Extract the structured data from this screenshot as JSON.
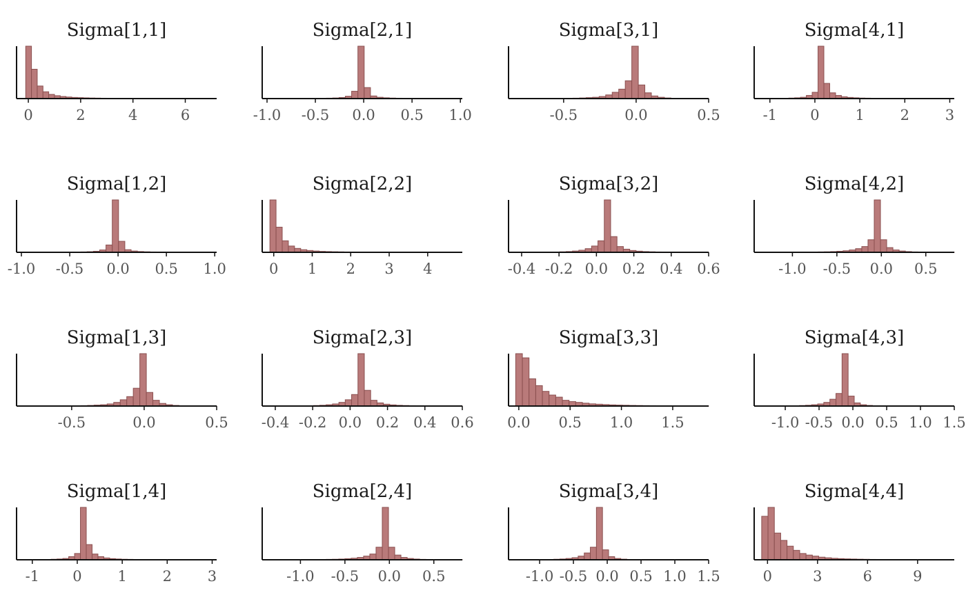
{
  "chart_data": [
    {
      "type": "bar",
      "title": "Sigma[1,1]",
      "xlim": [
        -0.45,
        7.2
      ],
      "ticks": [
        0,
        2,
        4,
        6
      ],
      "tick_labels": [
        "0",
        "2",
        "4",
        "6"
      ],
      "bin_start": -0.1,
      "bin_width": 0.22,
      "counts": [
        1000,
        560,
        240,
        130,
        80,
        55,
        40,
        30,
        22,
        18,
        14,
        11,
        9,
        7,
        6,
        5,
        4,
        4,
        3,
        3,
        3,
        2,
        2,
        2,
        2,
        2,
        1,
        1,
        1,
        1,
        1
      ]
    },
    {
      "type": "bar",
      "title": "Sigma[2,1]",
      "xlim": [
        -1.05,
        1.02
      ],
      "ticks": [
        -1.0,
        -0.5,
        0.0,
        0.5,
        1.0
      ],
      "tick_labels": [
        "-1.0",
        "-0.5",
        "0.0",
        "0.5",
        "1.0"
      ],
      "bin_start": -0.97,
      "bin_width": 0.065,
      "counts": [
        1,
        1,
        1,
        1,
        1,
        2,
        2,
        3,
        5,
        8,
        12,
        20,
        45,
        140,
        1000,
        210,
        50,
        25,
        15,
        10,
        7,
        5,
        4,
        3,
        2,
        2,
        1,
        1,
        1,
        1
      ]
    },
    {
      "type": "bar",
      "title": "Sigma[3,1]",
      "xlim": [
        -0.88,
        0.5
      ],
      "ticks": [
        -0.5,
        0.0,
        0.5
      ],
      "tick_labels": [
        "-0.5",
        "0.0",
        "0.5"
      ],
      "bin_start": -0.84,
      "bin_width": 0.045,
      "counts": [
        1,
        1,
        1,
        1,
        1,
        2,
        3,
        4,
        6,
        8,
        12,
        18,
        25,
        40,
        70,
        120,
        180,
        340,
        1000,
        260,
        110,
        50,
        25,
        12,
        6,
        3,
        2,
        1,
        1,
        1,
        1
      ]
    },
    {
      "type": "bar",
      "title": "Sigma[4,1]",
      "xlim": [
        -1.35,
        3.1
      ],
      "ticks": [
        -1,
        0,
        1,
        2,
        3
      ],
      "tick_labels": [
        "-1",
        "0",
        "1",
        "2",
        "3"
      ],
      "bin_start": -0.97,
      "bin_width": 0.13,
      "counts": [
        2,
        4,
        6,
        10,
        15,
        25,
        60,
        120,
        1000,
        290,
        110,
        60,
        35,
        22,
        15,
        10,
        8,
        6,
        5,
        4,
        3,
        3,
        2,
        2,
        2,
        1,
        1,
        1,
        1,
        1
      ]
    },
    {
      "type": "bar",
      "title": "Sigma[1,2]",
      "xlim": [
        -1.05,
        1.02
      ],
      "ticks": [
        -1.0,
        -0.5,
        0.0,
        0.5,
        1.0
      ],
      "tick_labels": [
        "-1.0",
        "-0.5",
        "0.0",
        "0.5",
        "1.0"
      ],
      "bin_start": -0.97,
      "bin_width": 0.065,
      "counts": [
        1,
        1,
        1,
        1,
        1,
        2,
        2,
        3,
        5,
        8,
        12,
        20,
        45,
        140,
        1000,
        210,
        50,
        25,
        15,
        10,
        7,
        5,
        4,
        3,
        2,
        2,
        1,
        1,
        1,
        1
      ]
    },
    {
      "type": "bar",
      "title": "Sigma[2,2]",
      "xlim": [
        -0.3,
        4.9
      ],
      "ticks": [
        0,
        1,
        2,
        3,
        4
      ],
      "tick_labels": [
        "0",
        "1",
        "2",
        "3",
        "4"
      ],
      "bin_start": -0.1,
      "bin_width": 0.16,
      "counts": [
        1000,
        480,
        220,
        120,
        75,
        50,
        35,
        25,
        18,
        14,
        11,
        9,
        7,
        6,
        5,
        4,
        4,
        3,
        3,
        2,
        2,
        2,
        2,
        1,
        1,
        1,
        1,
        1,
        1,
        1
      ]
    },
    {
      "type": "bar",
      "title": "Sigma[3,2]",
      "xlim": [
        -0.47,
        0.6
      ],
      "ticks": [
        -0.4,
        -0.2,
        0.0,
        0.2,
        0.4,
        0.6
      ],
      "tick_labels": [
        "-0.4",
        "-0.2",
        "0.0",
        "0.2",
        "0.4",
        "0.6"
      ],
      "bin_start": -0.4,
      "bin_width": 0.034,
      "counts": [
        1,
        1,
        2,
        3,
        4,
        6,
        10,
        15,
        25,
        40,
        70,
        120,
        220,
        1000,
        300,
        110,
        60,
        35,
        22,
        14,
        10,
        7,
        5,
        4,
        3,
        2,
        2,
        1,
        1,
        1
      ]
    },
    {
      "type": "bar",
      "title": "Sigma[4,2]",
      "xlim": [
        -1.43,
        0.82
      ],
      "ticks": [
        -1.0,
        -0.5,
        0.0,
        0.5
      ],
      "tick_labels": [
        "-1.0",
        "-0.5",
        "0.0",
        "0.5"
      ],
      "bin_start": -1.27,
      "bin_width": 0.07,
      "counts": [
        1,
        1,
        1,
        2,
        2,
        3,
        4,
        6,
        8,
        10,
        14,
        20,
        30,
        45,
        70,
        110,
        240,
        1000,
        240,
        90,
        45,
        25,
        14,
        8,
        5,
        3,
        2,
        1,
        1,
        1
      ]
    },
    {
      "type": "bar",
      "title": "Sigma[1,3]",
      "xlim": [
        -0.88,
        0.5
      ],
      "ticks": [
        -0.5,
        0.0,
        0.5
      ],
      "tick_labels": [
        "-0.5",
        "0.0",
        "0.5"
      ],
      "bin_start": -0.84,
      "bin_width": 0.045,
      "counts": [
        1,
        1,
        1,
        1,
        1,
        2,
        3,
        4,
        6,
        8,
        12,
        18,
        25,
        40,
        70,
        120,
        180,
        340,
        1000,
        260,
        110,
        50,
        25,
        12,
        6,
        3,
        2,
        1,
        1,
        1,
        1
      ]
    },
    {
      "type": "bar",
      "title": "Sigma[2,3]",
      "xlim": [
        -0.47,
        0.6
      ],
      "ticks": [
        -0.4,
        -0.2,
        0.0,
        0.2,
        0.4,
        0.6
      ],
      "tick_labels": [
        "-0.4",
        "-0.2",
        "0.0",
        "0.2",
        "0.4",
        "0.6"
      ],
      "bin_start": -0.4,
      "bin_width": 0.034,
      "counts": [
        1,
        1,
        2,
        3,
        4,
        6,
        10,
        15,
        25,
        40,
        70,
        120,
        220,
        1000,
        300,
        110,
        60,
        35,
        22,
        14,
        10,
        7,
        5,
        4,
        3,
        2,
        2,
        1,
        1,
        1
      ]
    },
    {
      "type": "bar",
      "title": "Sigma[3,3]",
      "xlim": [
        -0.1,
        1.85
      ],
      "ticks": [
        0.0,
        0.5,
        1.0,
        1.5
      ],
      "tick_labels": [
        "0.0",
        "0.5",
        "1.0",
        "1.5"
      ],
      "bin_start": -0.03,
      "bin_width": 0.065,
      "counts": [
        1000,
        920,
        520,
        390,
        280,
        210,
        170,
        110,
        85,
        70,
        55,
        42,
        35,
        28,
        22,
        18,
        15,
        12,
        10,
        8,
        7,
        6,
        5,
        4,
        4,
        3,
        3,
        2,
        2,
        1,
        1
      ]
    },
    {
      "type": "bar",
      "title": "Sigma[4,3]",
      "xlim": [
        -1.46,
        1.5
      ],
      "ticks": [
        -1.0,
        -0.5,
        0.0,
        0.5,
        1.0,
        1.5
      ],
      "tick_labels": [
        "-1.0",
        "-0.5",
        "0.0",
        "0.5",
        "1.0",
        "1.5"
      ],
      "bin_start": -1.33,
      "bin_width": 0.09,
      "counts": [
        1,
        1,
        2,
        3,
        4,
        6,
        10,
        15,
        25,
        40,
        70,
        130,
        240,
        1000,
        190,
        60,
        25,
        12,
        6,
        3,
        2,
        1,
        1,
        1,
        1,
        1,
        1,
        1,
        1,
        1
      ]
    },
    {
      "type": "bar",
      "title": "Sigma[1,4]",
      "xlim": [
        -1.35,
        3.1
      ],
      "ticks": [
        -1,
        0,
        1,
        2,
        3
      ],
      "tick_labels": [
        "-1",
        "0",
        "1",
        "2",
        "3"
      ],
      "bin_start": -0.97,
      "bin_width": 0.13,
      "counts": [
        2,
        4,
        6,
        10,
        15,
        25,
        60,
        120,
        1000,
        290,
        110,
        60,
        35,
        22,
        15,
        10,
        8,
        6,
        5,
        4,
        3,
        3,
        2,
        2,
        2,
        1,
        1,
        1,
        1,
        1
      ]
    },
    {
      "type": "bar",
      "title": "Sigma[2,4]",
      "xlim": [
        -1.43,
        0.82
      ],
      "ticks": [
        -1.0,
        -0.5,
        0.0,
        0.5
      ],
      "tick_labels": [
        "-1.0",
        "-0.5",
        "0.0",
        "0.5"
      ],
      "bin_start": -1.27,
      "bin_width": 0.07,
      "counts": [
        1,
        1,
        1,
        2,
        2,
        3,
        4,
        6,
        8,
        10,
        14,
        20,
        30,
        45,
        70,
        110,
        240,
        1000,
        240,
        90,
        45,
        25,
        14,
        8,
        5,
        3,
        2,
        1,
        1,
        1
      ]
    },
    {
      "type": "bar",
      "title": "Sigma[3,4]",
      "xlim": [
        -1.46,
        1.5
      ],
      "ticks": [
        -1.0,
        -0.5,
        0.0,
        0.5,
        1.0,
        1.5
      ],
      "tick_labels": [
        "-1.0",
        "-0.5",
        "0.0",
        "0.5",
        "1.0",
        "1.5"
      ],
      "bin_start": -1.33,
      "bin_width": 0.09,
      "counts": [
        1,
        1,
        2,
        3,
        4,
        6,
        10,
        15,
        25,
        40,
        70,
        130,
        240,
        1000,
        190,
        60,
        25,
        12,
        6,
        3,
        2,
        1,
        1,
        1,
        1,
        1,
        1,
        1,
        1,
        1
      ]
    },
    {
      "type": "bar",
      "title": "Sigma[4,4]",
      "xlim": [
        -0.8,
        11.2
      ],
      "ticks": [
        0,
        3,
        6,
        9
      ],
      "tick_labels": [
        "0",
        "3",
        "6",
        "9"
      ],
      "bin_start": -0.35,
      "bin_width": 0.38,
      "counts": [
        830,
        1000,
        510,
        370,
        260,
        180,
        120,
        90,
        70,
        50,
        38,
        28,
        22,
        17,
        14,
        11,
        9,
        7,
        6,
        5,
        4,
        3,
        3,
        2,
        2,
        2,
        1,
        1,
        1,
        1
      ]
    }
  ],
  "colors": {
    "bar_fill": "#b97a7a",
    "bar_stroke": "#8a4f4f",
    "axis": "#111111",
    "tick_label": "#555555",
    "title": "#1a1a1a"
  }
}
